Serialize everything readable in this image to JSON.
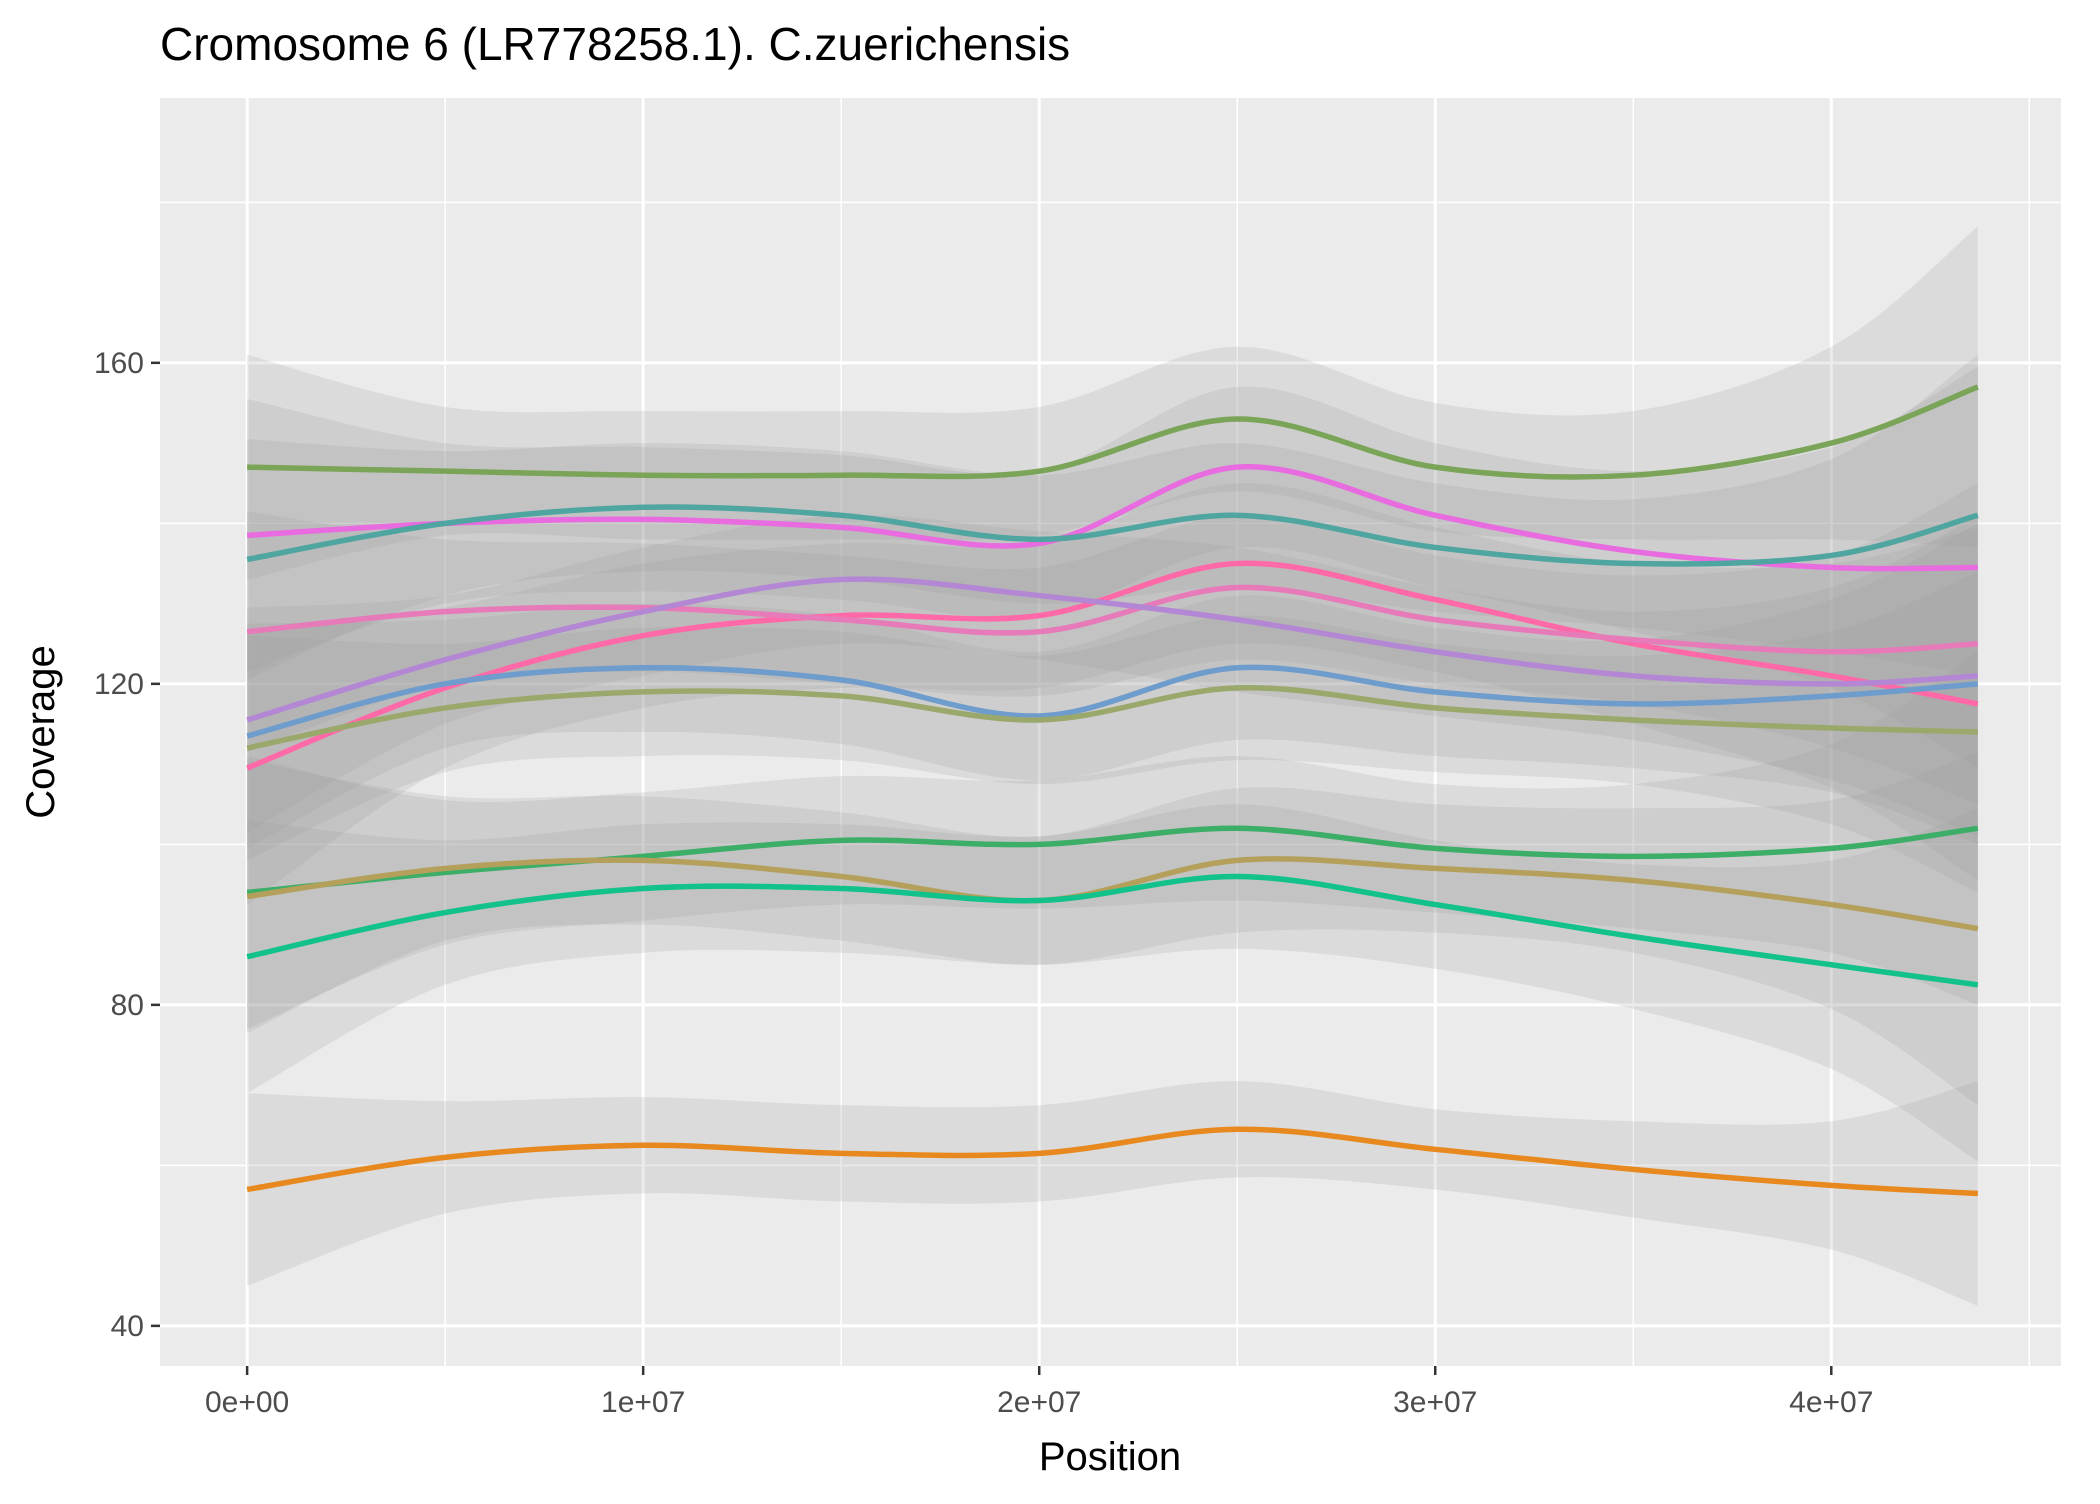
{
  "chart_data": {
    "type": "line",
    "title": "Cromosome 6 (LR778258.1). C.zuerichensis",
    "xlabel": "Position",
    "ylabel": "Coverage",
    "xlim": [
      -2200000,
      45800000
    ],
    "ylim": [
      35,
      193
    ],
    "x_ticks": [
      0,
      10000000,
      20000000,
      30000000,
      40000000
    ],
    "x_tick_labels": [
      "0e+00",
      "1e+07",
      "2e+07",
      "3e+07",
      "4e+07"
    ],
    "y_ticks": [
      40,
      80,
      120,
      160
    ],
    "y_tick_labels": [
      "40",
      "80",
      "120",
      "160"
    ],
    "grid": true,
    "legend": "none",
    "style": {
      "panel_bg": "#ebebeb",
      "grid_color": "#ffffff",
      "band_color": "#999999"
    },
    "x": [
      0,
      5000000,
      10000000,
      15000000,
      20000000,
      25000000,
      30000000,
      35000000,
      40000000,
      43700000
    ],
    "series": [
      {
        "color": "#7aa457",
        "values": [
          147,
          146.5,
          146,
          146,
          146.5,
          153,
          147,
          146,
          150,
          157
        ],
        "se": [
          14,
          8,
          8,
          8,
          8,
          9,
          8,
          8,
          12,
          20
        ]
      },
      {
        "color": "#e86be0",
        "values": [
          138.5,
          140,
          140.5,
          139.5,
          137.5,
          147,
          141,
          136.5,
          134.5,
          134.5
        ],
        "se": [
          17,
          10,
          9,
          9,
          9,
          10,
          9,
          10,
          15,
          25
        ]
      },
      {
        "color": "#4fa5a0",
        "values": [
          135.5,
          140,
          142,
          141,
          138,
          141,
          137,
          135,
          136,
          141
        ],
        "se": [
          15,
          9,
          8,
          8,
          8,
          9,
          8,
          8,
          12,
          20
        ]
      },
      {
        "color": "#ff69a8",
        "values": [
          109.5,
          119.5,
          126,
          128.5,
          128.5,
          135,
          130.5,
          125,
          121,
          117.5
        ],
        "se": [
          17,
          10,
          9,
          9,
          9,
          10,
          9,
          10,
          14,
          22
        ]
      },
      {
        "color": "#e77ab9",
        "values": [
          126.5,
          129,
          129.5,
          128,
          126.5,
          132,
          128,
          125.5,
          124,
          125
        ],
        "se": [
          15,
          9,
          8,
          8,
          8,
          9,
          8,
          8,
          12,
          20
        ]
      },
      {
        "color": "#b487d4",
        "values": [
          115.5,
          123,
          129,
          133,
          131,
          128,
          124,
          121,
          120,
          121
        ],
        "se": [
          14,
          8,
          8,
          8,
          8,
          9,
          8,
          8,
          12,
          20
        ]
      },
      {
        "color": "#6e9ccc",
        "values": [
          113.5,
          120,
          122,
          120.5,
          116,
          122,
          119,
          117.5,
          118.5,
          120
        ],
        "se": [
          14,
          8,
          8,
          8,
          8,
          9,
          8,
          8,
          12,
          20
        ]
      },
      {
        "color": "#9aa86b",
        "values": [
          112,
          117,
          119,
          118.5,
          115.5,
          119.5,
          117,
          115.5,
          114.5,
          114
        ],
        "se": [
          14,
          8,
          8,
          8,
          8,
          9,
          8,
          8,
          12,
          20
        ]
      },
      {
        "color": "#3cae68",
        "values": [
          94,
          96.5,
          98.5,
          100.5,
          100,
          102,
          99.5,
          98.5,
          99.5,
          102
        ],
        "se": [
          17,
          9,
          8,
          8,
          8,
          9,
          8,
          9,
          13,
          22
        ]
      },
      {
        "color": "#b4a05a",
        "values": [
          93.5,
          97,
          98,
          96,
          93,
          98,
          97,
          95.5,
          92.5,
          89.5
        ],
        "se": [
          17,
          9,
          8,
          8,
          8,
          9,
          8,
          9,
          13,
          22
        ]
      },
      {
        "color": "#12c28a",
        "values": [
          86,
          91.5,
          94.5,
          94.5,
          93,
          96,
          92.5,
          88.5,
          85,
          82.5
        ],
        "se": [
          17,
          9,
          8,
          8,
          8,
          9,
          8,
          9,
          13,
          22
        ]
      },
      {
        "color": "#e8891f",
        "values": [
          57,
          61,
          62.5,
          61.5,
          61.5,
          64.5,
          62,
          59.5,
          57.5,
          56.5
        ],
        "se": [
          12,
          7,
          6,
          6,
          6,
          6,
          5,
          6,
          8,
          14
        ]
      }
    ]
  }
}
